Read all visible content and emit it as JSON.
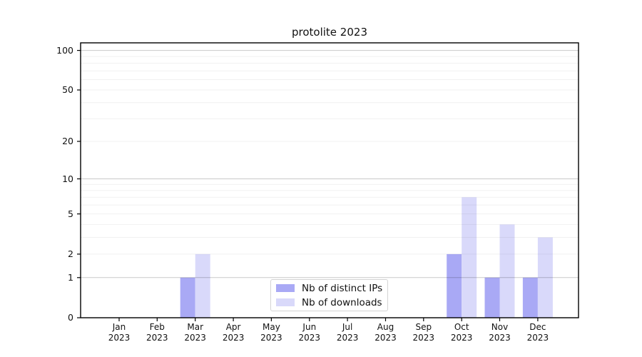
{
  "chart_data": {
    "type": "bar",
    "title": "protolite 2023",
    "categories": [
      "Jan 2023",
      "Feb 2023",
      "Mar 2023",
      "Apr 2023",
      "May 2023",
      "Jun 2023",
      "Jul 2023",
      "Aug 2023",
      "Sep 2023",
      "Oct 2023",
      "Nov 2023",
      "Dec 2023"
    ],
    "x_tick_months": [
      "Jan",
      "Feb",
      "Mar",
      "Apr",
      "May",
      "Jun",
      "Jul",
      "Aug",
      "Sep",
      "Oct",
      "Nov",
      "Dec"
    ],
    "x_tick_year": "2023",
    "series": [
      {
        "name": "Nb of distinct IPs",
        "color": "#a9a9f5",
        "values": [
          0,
          0,
          1,
          0,
          0,
          0,
          0,
          0,
          0,
          2,
          1,
          1
        ]
      },
      {
        "name": "Nb of downloads",
        "color": "#d9d9fa",
        "values": [
          0,
          0,
          2,
          0,
          0,
          0,
          0,
          0,
          0,
          7,
          4,
          3
        ]
      }
    ],
    "y_axis": {
      "scale": "log10(1+x)",
      "tick_labels": [
        0,
        1,
        2,
        5,
        10,
        20,
        50,
        100
      ],
      "major_gridlines": [
        1,
        10,
        100
      ],
      "minor_gridlines": [
        2,
        3,
        4,
        5,
        6,
        7,
        8,
        9,
        20,
        30,
        40,
        50,
        60,
        70,
        80,
        90
      ],
      "ymin": 0,
      "ymax": 114
    },
    "grid": true,
    "legend_position": "lower center"
  }
}
